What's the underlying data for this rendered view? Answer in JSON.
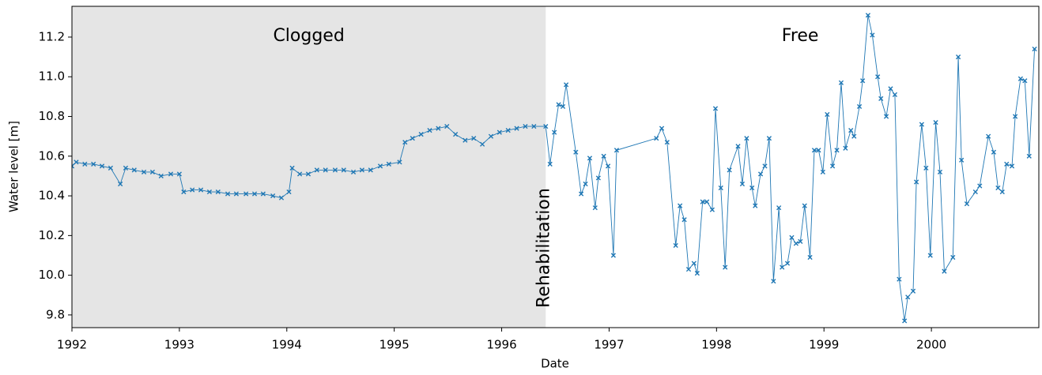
{
  "chart_data": {
    "type": "line",
    "x_label": "Date",
    "y_label": "Water level [m]",
    "annotations": [
      "Clogged",
      "Free",
      "Rehabilitation"
    ],
    "shade_xlim": [
      1992,
      1996.41
    ],
    "color": "#1f77b4",
    "marker": "x",
    "xlim": [
      1992,
      2001
    ],
    "xticks": [
      1992,
      1993,
      1994,
      1995,
      1996,
      1997,
      1998,
      1999,
      2000
    ],
    "ylim": [
      9.736,
      11.355
    ],
    "yticks": [
      9.8,
      {
        "value": 10.0,
        "label": "10.0"
      },
      10.2,
      10.4,
      10.6,
      10.8,
      {
        "value": 11.0,
        "label": "11.0"
      },
      11.2
    ],
    "x": [
      1992,
      1992.04,
      1992.12,
      1992.2,
      1992.28,
      1992.36,
      1992.45,
      1992.5,
      1992.58,
      1992.67,
      1992.75,
      1992.83,
      1992.92,
      1993,
      1993.04,
      1993.12,
      1993.2,
      1993.28,
      1993.36,
      1993.45,
      1993.53,
      1993.62,
      1993.7,
      1993.78,
      1993.87,
      1993.95,
      1994.02,
      1994.05,
      1994.12,
      1994.2,
      1994.28,
      1994.36,
      1994.45,
      1994.53,
      1994.62,
      1994.7,
      1994.78,
      1994.87,
      1994.95,
      1995.05,
      1995.1,
      1995.17,
      1995.25,
      1995.33,
      1995.41,
      1995.49,
      1995.57,
      1995.66,
      1995.74,
      1995.82,
      1995.9,
      1995.98,
      1996.06,
      1996.14,
      1996.22,
      1996.3,
      1996.41,
      1996.45,
      1996.49,
      1996.53,
      1996.57,
      1996.6,
      1996.69,
      1996.74,
      1996.78,
      1996.82,
      1996.87,
      1996.9,
      1996.95,
      1996.99,
      1997.04,
      1997.07,
      1997.44,
      1997.49,
      1997.54,
      1997.62,
      1997.66,
      1997.7,
      1997.74,
      1997.79,
      1997.82,
      1997.87,
      1997.91,
      1997.96,
      1997.99,
      1998.04,
      1998.08,
      1998.12,
      1998.2,
      1998.24,
      1998.28,
      1998.33,
      1998.36,
      1998.41,
      1998.45,
      1998.49,
      1998.53,
      1998.58,
      1998.61,
      1998.66,
      1998.7,
      1998.74,
      1998.78,
      1998.82,
      1998.87,
      1998.91,
      1998.95,
      1998.99,
      1999.03,
      1999.08,
      1999.12,
      1999.16,
      1999.2,
      1999.25,
      1999.28,
      1999.33,
      1999.36,
      1999.41,
      1999.45,
      1999.5,
      1999.53,
      1999.58,
      1999.62,
      1999.66,
      1999.7,
      1999.75,
      1999.78,
      1999.83,
      1999.86,
      1999.91,
      1999.95,
      1999.99,
      2000.04,
      2000.08,
      2000.12,
      2000.2,
      2000.25,
      2000.28,
      2000.33,
      2000.41,
      2000.45,
      2000.53,
      2000.58,
      2000.62,
      2000.66,
      2000.7,
      2000.75,
      2000.78,
      2000.83,
      2000.87,
      2000.91,
      2000.96
    ],
    "values": [
      10.55,
      10.57,
      10.56,
      10.56,
      10.55,
      10.54,
      10.46,
      10.54,
      10.53,
      10.52,
      10.52,
      10.5,
      10.51,
      10.51,
      10.42,
      10.43,
      10.43,
      10.42,
      10.42,
      10.41,
      10.41,
      10.41,
      10.41,
      10.41,
      10.4,
      10.39,
      10.42,
      10.54,
      10.51,
      10.51,
      10.53,
      10.53,
      10.53,
      10.53,
      10.52,
      10.53,
      10.53,
      10.55,
      10.56,
      10.57,
      10.67,
      10.69,
      10.71,
      10.73,
      10.74,
      10.75,
      10.71,
      10.68,
      10.69,
      10.66,
      10.7,
      10.72,
      10.73,
      10.74,
      10.75,
      10.75,
      10.75,
      10.56,
      10.72,
      10.86,
      10.85,
      10.96,
      10.62,
      10.41,
      10.46,
      10.59,
      10.34,
      10.49,
      10.6,
      10.55,
      10.1,
      10.63,
      10.69,
      10.74,
      10.67,
      10.15,
      10.35,
      10.28,
      10.03,
      10.06,
      10.01,
      10.37,
      10.37,
      10.33,
      10.84,
      10.44,
      10.04,
      10.53,
      10.65,
      10.46,
      10.69,
      10.44,
      10.35,
      10.51,
      10.55,
      10.69,
      9.97,
      10.34,
      10.04,
      10.06,
      10.19,
      10.16,
      10.17,
      10.35,
      10.09,
      10.63,
      10.63,
      10.52,
      10.81,
      10.55,
      10.63,
      10.97,
      10.64,
      10.73,
      10.7,
      10.85,
      10.98,
      11.31,
      11.21,
      11.0,
      10.89,
      10.8,
      10.94,
      10.91,
      9.98,
      9.77,
      9.89,
      9.92,
      10.47,
      10.76,
      10.54,
      10.1,
      10.77,
      10.52,
      10.02,
      10.09,
      11.1,
      10.58,
      10.36,
      10.42,
      10.45,
      10.7,
      10.62,
      10.44,
      10.42,
      10.56,
      10.55,
      10.8,
      10.99,
      10.98,
      10.6,
      11.14
    ]
  }
}
